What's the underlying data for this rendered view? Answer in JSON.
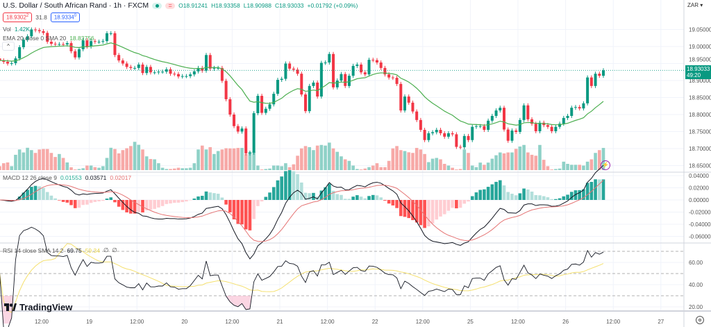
{
  "header": {
    "symbol_title": "U.S. Dollar / South African Rand · 1h · FXCM",
    "ohlc": {
      "open": "O18.91241",
      "high": "H18.93358",
      "low": "L18.90988",
      "close": "C18.93033",
      "change": "+0.01792 (+0.09%)"
    },
    "sell_price": "18.9302",
    "sell_sup": "2",
    "spread": "31.8",
    "buy_price": "18.9334",
    "buy_sup": "0",
    "currency": "ZAR",
    "currency_chevron": "▾"
  },
  "indicators": {
    "volume": {
      "label": "Vol",
      "value": "1.42K"
    },
    "ema": {
      "label": "EMA 20 close 0 SMA 20",
      "value": "18.83756",
      "color": "#4caf50"
    },
    "macd": {
      "label": "MACD 12 26 close 9",
      "hist": "0.01553",
      "macd": "0.03571",
      "signal": "0.02017"
    },
    "rsi": {
      "label": "RSI 14 close SMA 14 2",
      "rsi": "69.75",
      "sma": "59.34",
      "extra1": "∅",
      "extra2": "∅"
    }
  },
  "current_price": {
    "value": "18.93033",
    "countdown": "49:20"
  },
  "collapse_icon": "^",
  "logo_text": "TradingView",
  "colors": {
    "up": "#089981",
    "down": "#f23645",
    "vol_up": "#8fd1c7",
    "vol_down": "#f7a9a7",
    "ema": "#4caf50",
    "macd": "#131722",
    "signal": "#e57373",
    "rsi": "#131722",
    "rsi_sma": "#f5e06e"
  },
  "chart_data": {
    "type": "candlestick",
    "interval": "1h",
    "open_first": 18.965,
    "close": [
      18.959,
      18.955,
      18.95,
      18.951,
      18.965,
      18.998,
      19.02,
      19.03,
      19.05,
      19.048,
      19.045,
      19.04,
      19.014,
      19.008,
      19.007,
      19.007,
      19.006,
      19.01,
      18.986,
      18.968,
      18.992,
      19.018,
      19.0,
      19.016,
      19.014,
      19.014,
      19.016,
      19.039,
      19.039,
      18.975,
      18.959,
      18.95,
      18.94,
      18.937,
      18.937,
      18.947,
      18.922,
      18.94,
      18.924,
      18.924,
      18.926,
      18.926,
      18.933,
      18.92,
      18.919,
      18.912,
      18.913,
      18.913,
      18.918,
      18.927,
      18.937,
      18.929,
      18.975,
      18.935,
      18.937,
      18.937,
      18.899,
      18.845,
      18.8,
      18.766,
      18.75,
      18.759,
      18.686,
      18.688,
      18.804,
      18.855,
      18.805,
      18.817,
      18.83,
      18.861,
      18.902,
      18.905,
      18.95,
      18.935,
      18.932,
      18.92,
      18.859,
      18.81,
      18.884,
      18.894,
      18.853,
      18.952,
      18.953,
      18.978,
      18.88,
      18.9,
      18.919,
      18.884,
      18.914,
      18.943,
      18.947,
      18.924,
      18.918,
      18.961,
      18.96,
      18.953,
      18.937,
      18.918,
      18.909,
      18.908,
      18.89,
      18.812,
      18.853,
      18.835,
      18.809,
      18.784,
      18.755,
      18.725,
      18.745,
      18.748,
      18.755,
      18.745,
      18.735,
      18.745,
      18.742,
      18.705,
      18.704,
      18.737,
      18.725,
      18.764,
      18.766,
      18.766,
      18.755,
      18.782,
      18.796,
      18.812,
      18.82,
      18.756,
      18.723,
      18.753,
      18.749,
      18.784,
      18.827,
      18.786,
      18.773,
      18.751,
      18.776,
      18.769,
      18.764,
      18.751,
      18.764,
      18.773,
      18.79,
      18.796,
      18.82,
      18.822,
      18.818,
      18.833,
      18.909,
      18.884,
      18.92,
      18.914,
      18.93
    ],
    "volume_k": [
      0.25,
      0.44,
      0.49,
      0.25,
      0.98,
      1.32,
      1.13,
      1.43,
      1.28,
      1.1,
      1.32,
      1.35,
      1.35,
      1.1,
      0.84,
      1.03,
      0.78,
      0.49,
      0.18,
      0.04,
      0.07,
      0.12,
      0.29,
      0.29,
      0.19,
      0.15,
      0.25,
      0.78,
      1.43,
      1.35,
      1.07,
      1.28,
      1.4,
      1.54,
      1.81,
      1.62,
      1.32,
      0.88,
      0.71,
      0.69,
      0.44,
      0.15,
      0.07,
      0.07,
      0.1,
      0.15,
      0.12,
      0.12,
      0.15,
      0.44,
      1.32,
      1.57,
      1.32,
      1.47,
      1.03,
      1.22,
      1.32,
      1.4,
      1.39,
      1.39,
      1.42,
      1.42,
      1.03,
      1.17,
      1.17,
      0.29,
      0.04,
      0.07,
      0.1,
      0.29,
      0.29,
      0.25,
      0.44,
      0.19,
      0.37,
      0.92,
      1.39,
      1.54,
      1.47,
      1.28,
      1.57,
      1.61,
      1.57,
      1.76,
      1.39,
      1.17,
      0.88,
      0.69,
      0.59,
      0.29,
      0.07,
      0.04,
      0.1,
      0.19,
      0.29,
      0.44,
      0.19,
      0.19,
      0.59,
      1.39,
      1.54,
      1.28,
      1.22,
      1.14,
      1.1,
      1.42,
      1.32,
      1.03,
      0.51,
      0.73,
      0.78,
      0.69,
      0.4,
      0.29,
      0.15,
      0.04,
      0.07,
      1.32,
      1.1,
      0.29,
      0.19,
      0.48,
      0.34,
      0.48,
      0.73,
      0.95,
      1.13,
      1.07,
      1.13,
      1.13,
      1.36,
      1.51,
      1.61,
      1.13,
      0.98,
      0.92,
      1.61,
      0.66,
      0.25,
      0.04,
      0.07,
      0.1,
      0.54,
      0.4,
      0.34,
      0.34,
      0.34,
      0.29,
      0.54,
      0.69,
      1.1,
      1.28,
      1.42
    ],
    "price_ticks": [
      "19.05000",
      "19.00000",
      "18.95000",
      "18.90000",
      "18.85000",
      "18.80000",
      "18.75000",
      "18.70000",
      "18.65000"
    ],
    "price_tick_values": [
      19.05,
      19.0,
      18.95,
      18.9,
      18.85,
      18.8,
      18.75,
      18.7,
      18.65
    ],
    "macd_ticks": [
      "0.04000",
      "0.02000",
      "0.00000",
      "-0.02000",
      "-0.04000",
      "-0.06000"
    ],
    "macd_tick_values": [
      0.04,
      0.02,
      0,
      -0.02,
      -0.04,
      -0.06
    ],
    "rsi_ticks": [
      "60.00",
      "40.00",
      "20.00"
    ],
    "rsi_tick_values": [
      60,
      40,
      20
    ],
    "rsi_bands": [
      70,
      50,
      30
    ],
    "time_ticks": [
      "12:00",
      "19",
      "12:00",
      "20",
      "12:00",
      "21",
      "12:00",
      "22",
      "12:00",
      "25",
      "12:00",
      "26",
      "12:00",
      "27"
    ],
    "grid": true
  }
}
